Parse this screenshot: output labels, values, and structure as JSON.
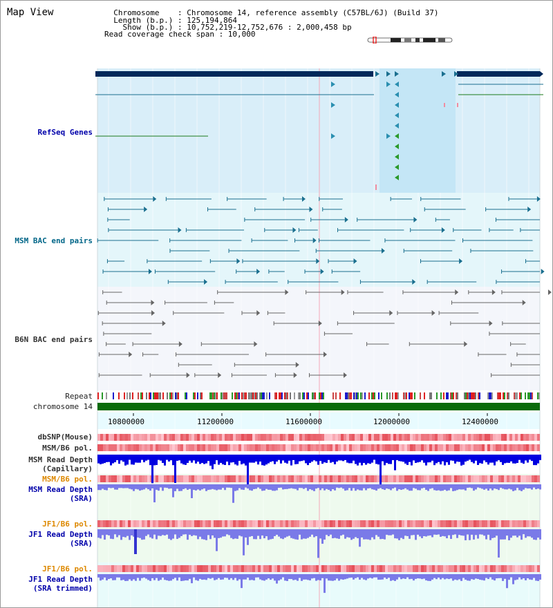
{
  "view_title": "Map View",
  "info_lines": [
    "  Chromosome    : Chromosome 14, reference assembly (C57BL/6J) (Build 37)",
    "  Length (b.p.) : 125,194,864",
    "    Show (b.p.) : 10,752,219-12,752,676 : 2,000,458 bp",
    "Read coverage check span : 10,000"
  ],
  "tracks": {
    "refseq": "RefSeq Genes",
    "msm_bac": "MSM BAC end pairs",
    "b6n_bac": "B6N BAC end pairs",
    "repeat": "Repeat",
    "chromosome": "chromosome 14",
    "dbsnp": "dbSNP(Mouse)",
    "msm_b6_pol_1": "MSM/B6 pol.",
    "msm_depth_cap_1": "MSM Read Depth",
    "msm_depth_cap_2": "(Capillary)",
    "msm_b6_pol_2": "MSM/B6 pol.",
    "msm_depth_sra_1": "MSM Read Depth",
    "msm_depth_sra_2": "(SRA)",
    "jf1_b6_pol_1": "JF1/B6 pol.",
    "jf1_depth_sra_1": "JF1 Read Depth",
    "jf1_depth_sra_2": "(SRA)",
    "jf1_b6_pol_2": "JF1/B6 pol.",
    "jf1_depth_trim_1": "JF1 Read Depth",
    "jf1_depth_trim_2": "(SRA trimmed)"
  },
  "axis_ticks": [
    "10800000",
    "11200000",
    "11600000",
    "12000000",
    "12400000"
  ],
  "colors": {
    "label_blue": "#0000aa",
    "label_teal": "#006688",
    "label_orange": "#dd8800",
    "label_grey": "#333333",
    "gene_dark": "#00285a",
    "gene_line": "#1a6f8f",
    "gene_bg": "#d9eef9",
    "msm_bg": "#e4f6fa",
    "b6n_bg": "#f4f6fb",
    "chrom_green": "#0b6b0b",
    "depth_blue": "#0000e0",
    "depth_light": "#7a7ae8",
    "pol_red": "#e84040"
  }
}
